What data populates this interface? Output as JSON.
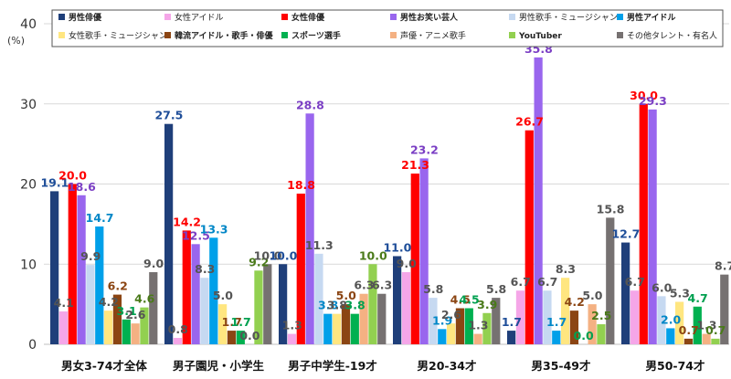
{
  "chart_data": {
    "type": "bar",
    "ylabel": "(%)",
    "ylim": [
      0,
      40
    ],
    "yticks": [
      "0",
      "10",
      "20",
      "30",
      "40"
    ],
    "grid": true,
    "legend_position": "top",
    "categories": [
      "男女3-74才全体",
      "男子園児・小学生",
      "男子中学生-19才",
      "男20-34才",
      "男35-49才",
      "男50-74才"
    ],
    "series": [
      {
        "name": "男性俳優",
        "color": "#1f3f7a",
        "bold": true,
        "labelColor": "#1f4e99",
        "values": [
          19.1,
          27.5,
          10.0,
          11.0,
          1.7,
          12.7
        ]
      },
      {
        "name": "女性アイドル",
        "color": "#f5a6e8",
        "bold": false,
        "labelColor": "#555555",
        "values": [
          4.1,
          0.8,
          1.3,
          9.0,
          6.7,
          6.7
        ]
      },
      {
        "name": "女性俳優",
        "color": "#ff0000",
        "bold": true,
        "labelColor": "#ff0000",
        "values": [
          20.0,
          14.2,
          18.8,
          21.3,
          26.7,
          30.0
        ]
      },
      {
        "name": "男性お笑い芸人",
        "color": "#9966ee",
        "bold": true,
        "labelColor": "#7b3fc4",
        "values": [
          18.6,
          12.5,
          28.8,
          23.2,
          35.8,
          29.3
        ]
      },
      {
        "name": "男性歌手・ミュージシャン",
        "color": "#c6d9f1",
        "bold": false,
        "labelColor": "#555555",
        "values": [
          9.9,
          8.3,
          11.3,
          5.8,
          6.7,
          6.0
        ]
      },
      {
        "name": "男性アイドル",
        "color": "#00a0e9",
        "bold": true,
        "labelColor": "#0087c7",
        "values": [
          14.7,
          13.3,
          3.8,
          1.9,
          1.7,
          2.0
        ]
      },
      {
        "name": "女性歌手・ミュージシャン",
        "color": "#ffe680",
        "bold": false,
        "labelColor": "#555555",
        "values": [
          4.2,
          5.0,
          3.8,
          2.6,
          8.3,
          5.3
        ]
      },
      {
        "name": "韓流アイドル・歌手・俳優",
        "color": "#8b4513",
        "bold": true,
        "labelColor": "#8b4513",
        "values": [
          6.2,
          1.7,
          5.0,
          4.5,
          4.2,
          0.7
        ]
      },
      {
        "name": "スポーツ選手",
        "color": "#00b050",
        "bold": true,
        "labelColor": "#00a050",
        "values": [
          3.1,
          1.7,
          3.8,
          4.5,
          0.0,
          4.7
        ]
      },
      {
        "name": "声優・アニメ歌手",
        "color": "#f4b183",
        "bold": false,
        "labelColor": "#555555",
        "values": [
          2.6,
          0.0,
          6.3,
          1.3,
          5.0,
          1.3
        ]
      },
      {
        "name": "YouTuber",
        "color": "#92d050",
        "bold": true,
        "labelColor": "#4a7a1a",
        "values": [
          4.6,
          9.2,
          10.0,
          3.9,
          2.5,
          0.7
        ]
      },
      {
        "name": "その他タレント・有名人",
        "color": "#767171",
        "bold": false,
        "labelColor": "#555555",
        "values": [
          9.0,
          10.0,
          6.3,
          5.8,
          15.8,
          8.7
        ]
      }
    ]
  }
}
